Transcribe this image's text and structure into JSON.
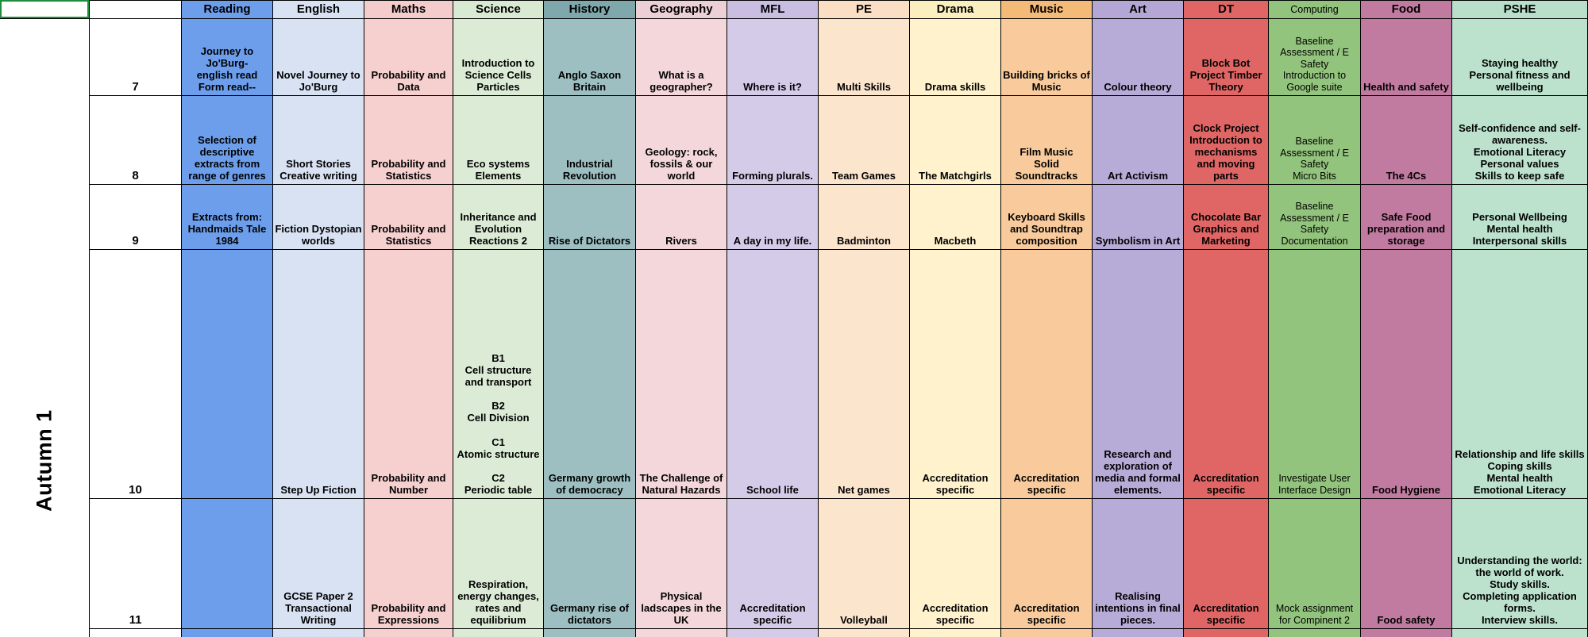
{
  "sheet": {
    "term_label": "Autumn 1",
    "selection_border_color": "#1E8E3E",
    "grid_line_color": "#000000",
    "columns": [
      {
        "key": "reading",
        "label": "Reading",
        "header_bg": "#6D9EEB",
        "body_bg": "#6D9EEB"
      },
      {
        "key": "english",
        "label": "English",
        "header_bg": "#D9E2F3",
        "body_bg": "#D9E2F3"
      },
      {
        "key": "maths",
        "label": "Maths",
        "header_bg": "#F4CCCC",
        "body_bg": "#F6CFCF"
      },
      {
        "key": "science",
        "label": "Science",
        "header_bg": "#D9EAD3",
        "body_bg": "#DCEBD6"
      },
      {
        "key": "history",
        "label": "History",
        "header_bg": "#7FA8AC",
        "body_bg": "#9DBFC1"
      },
      {
        "key": "geography",
        "label": "Geography",
        "header_bg": "#EDD0D6",
        "body_bg": "#F3D7DB"
      },
      {
        "key": "mfl",
        "label": "MFL",
        "header_bg": "#C9BEE2",
        "body_bg": "#D4CBE8"
      },
      {
        "key": "pe",
        "label": "PE",
        "header_bg": "#FBDFC4",
        "body_bg": "#FCE5CD"
      },
      {
        "key": "drama",
        "label": "Drama",
        "header_bg": "#FCEFBF",
        "body_bg": "#FFF2CC"
      },
      {
        "key": "music",
        "label": "Music",
        "header_bg": "#F4BA77",
        "body_bg": "#F9CB9C"
      },
      {
        "key": "art",
        "label": "Art",
        "header_bg": "#B4A7D6",
        "body_bg": "#B7ABD8"
      },
      {
        "key": "dt",
        "label": "DT",
        "header_bg": "#E06666",
        "body_bg": "#E06666"
      },
      {
        "key": "computing",
        "label": "Computing",
        "header_bg": "#93C47D",
        "body_bg": "#93C47D"
      },
      {
        "key": "food",
        "label": "Food",
        "header_bg": "#C27BA0",
        "body_bg": "#C27BA0"
      },
      {
        "key": "pshe",
        "label": "PSHE",
        "header_bg": "#B7DFC9",
        "body_bg": "#BCE2CE"
      }
    ],
    "rows": [
      {
        "year": "7",
        "cells": [
          "Journey to\nJo'Burg-\nenglish read\nForm read--",
          "Novel Journey to Jo'Burg",
          "Probability and Data",
          "Introduction to Science Cells Particles",
          "Anglo Saxon Britain",
          "What is a geographer?",
          "Where is it?",
          "Multi Skills",
          "Drama skills",
          "Building bricks of Music",
          "Colour theory",
          "Block Bot Project Timber Theory",
          "Baseline Assessment / E Safety\nIntroduction to Google suite",
          "Health and safety",
          "Staying healthy\nPersonal fitness and wellbeing"
        ]
      },
      {
        "year": "8",
        "cells": [
          "Selection of descriptive extracts from range of genres",
          "Short Stories\nCreative writing",
          "Probability and Statistics",
          "Eco systems Elements",
          "Industrial Revolution",
          "Geology: rock, fossils & our world",
          "Forming plurals.",
          "Team Games",
          "The Matchgirls",
          "Film Music\nSolid\nSoundtracks",
          "Art Activism",
          "Clock Project Introduction to mechanisms and moving parts",
          "Baseline Assessment / E Safety\nMicro Bits",
          "The 4Cs",
          "Self-confidence and self-awareness.\nEmotional Literacy\nPersonal values\nSkills to keep safe"
        ]
      },
      {
        "year": "9",
        "cells": [
          "Extracts from: Handmaids Tale 1984",
          "Fiction Dystopian worlds",
          "Probability and Statistics",
          "Inheritance and Evolution Reactions 2",
          "Rise of Dictators",
          "Rivers",
          "A day in my life.",
          "Badminton",
          "Macbeth",
          "Keyboard Skills and Soundtrap composition",
          "Symbolism in Art",
          "Chocolate Bar Graphics and Marketing",
          "Baseline Assessment / E Safety\nDocumentation",
          "Safe Food preparation and storage",
          "Personal Wellbeing\nMental health\nInterpersonal skills"
        ]
      },
      {
        "year": "10",
        "cells": [
          "",
          "Step Up Fiction",
          "Probability and Number",
          "B1\nCell structure and transport\n\nB2\nCell Division\n\nC1\nAtomic structure\n\nC2\nPeriodic table",
          "Germany growth of democracy",
          "The Challenge of Natural Hazards",
          "School life",
          "Net games",
          "Accreditation specific",
          "Accreditation specific",
          "Research and exploration of media and formal elements.",
          "Accreditation specific",
          "Investigate User Interface Design",
          "Food Hygiene",
          "Relationship and life skills\nCoping skills\nMental health\nEmotional Literacy"
        ]
      },
      {
        "year": "11",
        "cells": [
          "",
          "GCSE Paper 2 Transactional Writing",
          "Probability and Expressions",
          "Respiration, energy changes, rates and equilibrium",
          "Germany rise of dictators",
          "Physical ladscapes in the UK",
          "Accreditation specific",
          "Volleyball",
          "Accreditation specific",
          "Accreditation specific",
          "Realising intentions in final pieces.",
          "Accreditation specific",
          "Mock assignment for Compinent 2",
          "Food safety",
          "Understanding the world: the world of work.\nStudy skills.\nCompleting application forms.\nInterview skills."
        ]
      }
    ]
  }
}
